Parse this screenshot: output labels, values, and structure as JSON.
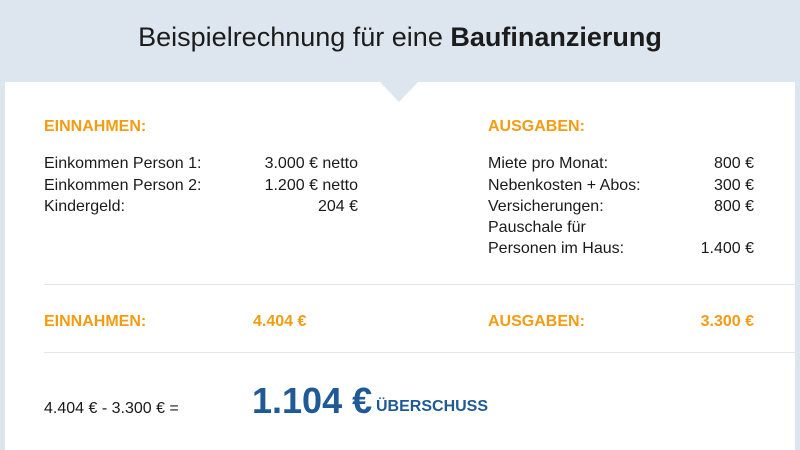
{
  "header": {
    "title_plain": "Beispielrechnung für eine ",
    "title_bold": "Baufinanzierung"
  },
  "income": {
    "heading": "EINNAHMEN:",
    "rows": [
      {
        "label": "Einkommen Person 1:",
        "value": "3.000 € netto"
      },
      {
        "label": "Einkommen Person 2:",
        "value": "1.200 € netto"
      },
      {
        "label": "Kindergeld:",
        "value": "204 €"
      }
    ],
    "total_label": "EINNAHMEN:",
    "total_value": "4.404 €"
  },
  "expenses": {
    "heading": "AUSGABEN:",
    "rows": [
      {
        "label": "Miete pro Monat:",
        "value": "800 €"
      },
      {
        "label": "Nebenkosten + Abos:",
        "value": "300 €"
      },
      {
        "label": "Versicherungen:",
        "value": "800 €"
      },
      {
        "label": "Pauschale für",
        "value": ""
      },
      {
        "label": "Personen im Haus:",
        "value": "1.400 €"
      }
    ],
    "total_label": "AUSGABEN:",
    "total_value": "3.300 €"
  },
  "result": {
    "formula": "4.404 € - 3.300 € =",
    "amount": "1.104 €",
    "suffix": "ÜBERSCHUSS"
  },
  "colors": {
    "accent": "#f39c12",
    "result": "#1f5a96",
    "header_bg": "#dde5ee"
  }
}
